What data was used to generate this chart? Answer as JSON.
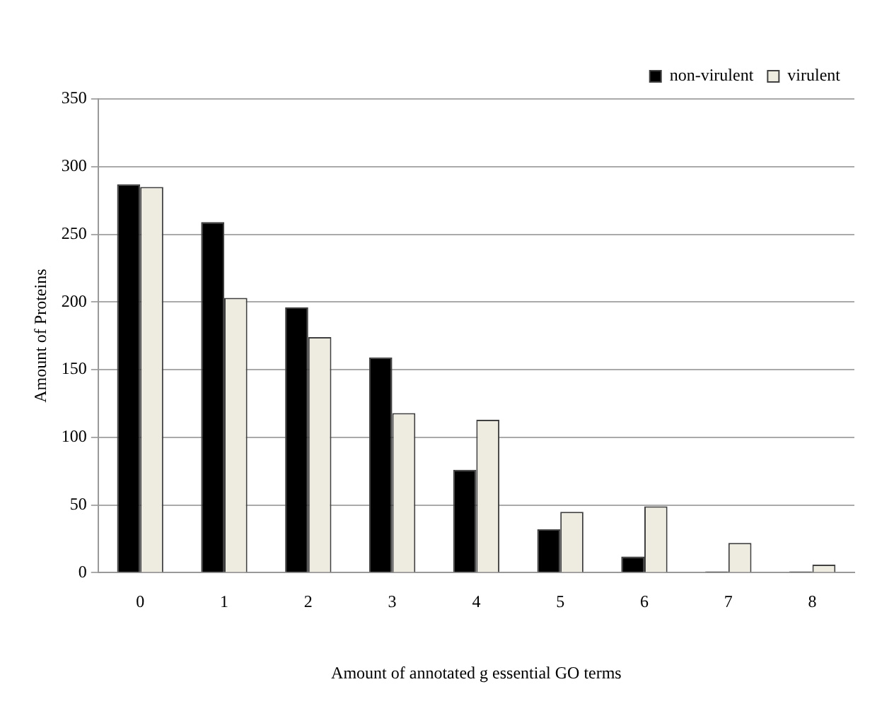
{
  "chart_data": {
    "type": "bar",
    "xlabel": "Amount of annotated g essential GO terms",
    "ylabel": "Amount of Proteins",
    "categories": [
      "0",
      "1",
      "2",
      "3",
      "4",
      "5",
      "6",
      "7",
      "8"
    ],
    "series": [
      {
        "name": "non-virulent",
        "color": "#000000",
        "values": [
          287,
          259,
          196,
          159,
          76,
          32,
          12,
          1,
          1
        ]
      },
      {
        "name": "virulent",
        "color": "#eeece1",
        "values": [
          285,
          203,
          174,
          118,
          113,
          45,
          49,
          22,
          6
        ]
      }
    ],
    "ylim": [
      0,
      350
    ],
    "yticks": [
      0,
      50,
      100,
      150,
      200,
      250,
      300,
      350
    ],
    "grid": "y",
    "legend": "top right"
  }
}
